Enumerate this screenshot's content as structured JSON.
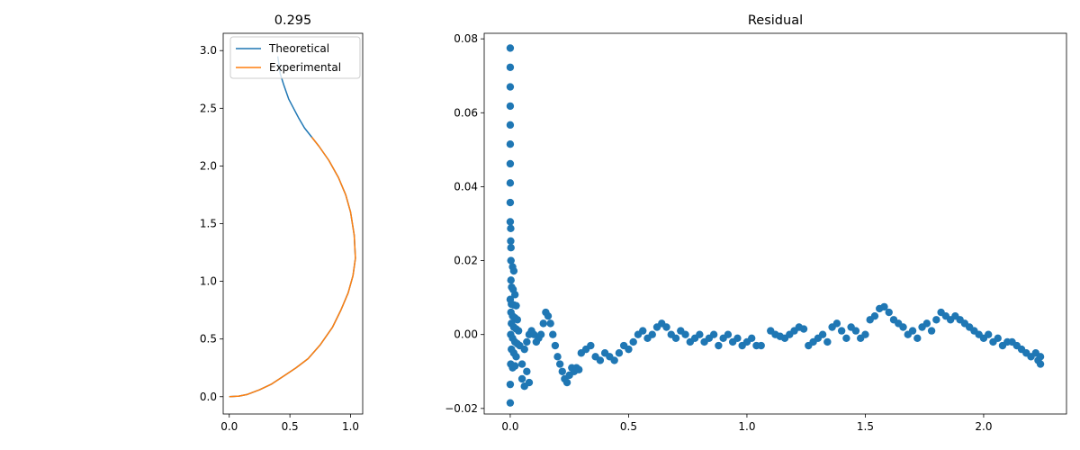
{
  "chart_data": [
    {
      "type": "line",
      "title": "0.295",
      "xlabel": "",
      "ylabel": "",
      "xlim": [
        -0.05,
        1.1
      ],
      "ylim": [
        -0.15,
        3.15
      ],
      "xticks": [
        0.0,
        0.5,
        1.0
      ],
      "xtick_labels": [
        "0.0",
        "0.5",
        "1.0"
      ],
      "yticks": [
        0.0,
        0.5,
        1.0,
        1.5,
        2.0,
        2.5,
        3.0
      ],
      "ytick_labels": [
        "0.0",
        "0.5",
        "1.0",
        "1.5",
        "2.0",
        "2.5",
        "3.0"
      ],
      "legend": {
        "placement": "top-right"
      },
      "series": [
        {
          "name": "Theoretical",
          "color": "#1f77b4",
          "points": [
            [
              0.0,
              0.0
            ],
            [
              0.08,
              0.005
            ],
            [
              0.15,
              0.02
            ],
            [
              0.25,
              0.06
            ],
            [
              0.35,
              0.11
            ],
            [
              0.45,
              0.18
            ],
            [
              0.55,
              0.25
            ],
            [
              0.65,
              0.33
            ],
            [
              0.75,
              0.45
            ],
            [
              0.85,
              0.6
            ],
            [
              0.92,
              0.75
            ],
            [
              0.98,
              0.9
            ],
            [
              1.02,
              1.05
            ],
            [
              1.04,
              1.2
            ],
            [
              1.03,
              1.4
            ],
            [
              1.0,
              1.6
            ],
            [
              0.96,
              1.75
            ],
            [
              0.9,
              1.9
            ],
            [
              0.82,
              2.05
            ],
            [
              0.74,
              2.17
            ],
            [
              0.68,
              2.25
            ],
            [
              0.62,
              2.33
            ],
            [
              0.57,
              2.42
            ],
            [
              0.53,
              2.5
            ],
            [
              0.49,
              2.58
            ],
            [
              0.45,
              2.7
            ],
            [
              0.42,
              2.8
            ],
            [
              0.4,
              2.95
            ]
          ]
        },
        {
          "name": "Experimental",
          "color": "#ff7f0e",
          "points": [
            [
              0.0,
              0.0
            ],
            [
              0.08,
              0.005
            ],
            [
              0.15,
              0.02
            ],
            [
              0.25,
              0.06
            ],
            [
              0.35,
              0.11
            ],
            [
              0.45,
              0.18
            ],
            [
              0.55,
              0.25
            ],
            [
              0.65,
              0.33
            ],
            [
              0.75,
              0.45
            ],
            [
              0.85,
              0.6
            ],
            [
              0.92,
              0.75
            ],
            [
              0.98,
              0.9
            ],
            [
              1.02,
              1.05
            ],
            [
              1.04,
              1.2
            ],
            [
              1.03,
              1.4
            ],
            [
              1.0,
              1.6
            ],
            [
              0.96,
              1.75
            ],
            [
              0.9,
              1.9
            ],
            [
              0.82,
              2.05
            ],
            [
              0.74,
              2.17
            ],
            [
              0.68,
              2.25
            ]
          ]
        }
      ]
    },
    {
      "type": "scatter",
      "title": "Residual",
      "xlabel": "",
      "ylabel": "",
      "xlim": [
        -0.11,
        2.35
      ],
      "ylim": [
        -0.0215,
        0.0815
      ],
      "xticks": [
        0.0,
        0.5,
        1.0,
        1.5,
        2.0
      ],
      "xtick_labels": [
        "0.0",
        "0.5",
        "1.0",
        "1.5",
        "2.0"
      ],
      "yticks": [
        -0.02,
        0.0,
        0.02,
        0.04,
        0.06,
        0.08
      ],
      "ytick_labels": [
        "−0.02",
        "0.00",
        "0.02",
        "0.04",
        "0.06",
        "0.08"
      ],
      "series": [
        {
          "name": "",
          "color": "#1f77b4",
          "points": [
            [
              0.0,
              0.0775
            ],
            [
              0.0,
              0.0723
            ],
            [
              0.0,
              0.067
            ],
            [
              0.0,
              0.0618
            ],
            [
              0.0,
              0.0567
            ],
            [
              0.0,
              0.0515
            ],
            [
              0.0,
              0.0462
            ],
            [
              0.0,
              0.041
            ],
            [
              0.0,
              0.0357
            ],
            [
              0.0,
              0.0305
            ],
            [
              0.002,
              0.0287
            ],
            [
              0.002,
              0.0253
            ],
            [
              0.003,
              0.0235
            ],
            [
              0.003,
              0.02
            ],
            [
              0.01,
              0.0183
            ],
            [
              0.015,
              0.0172
            ],
            [
              0.003,
              0.0147
            ],
            [
              0.006,
              0.0128
            ],
            [
              0.012,
              0.0122
            ],
            [
              0.02,
              0.0108
            ],
            [
              0.0,
              0.0095
            ],
            [
              0.005,
              0.0082
            ],
            [
              0.015,
              0.008
            ],
            [
              0.025,
              0.0078
            ],
            [
              0.003,
              0.006
            ],
            [
              0.01,
              0.005
            ],
            [
              0.02,
              0.0045
            ],
            [
              0.03,
              0.004
            ],
            [
              0.005,
              0.003
            ],
            [
              0.015,
              0.002
            ],
            [
              0.025,
              0.0015
            ],
            [
              0.035,
              0.001
            ],
            [
              0.002,
              0.0
            ],
            [
              0.01,
              -0.001
            ],
            [
              0.02,
              -0.002
            ],
            [
              0.03,
              -0.0025
            ],
            [
              0.04,
              -0.003
            ],
            [
              0.005,
              -0.004
            ],
            [
              0.015,
              -0.005
            ],
            [
              0.025,
              -0.006
            ],
            [
              0.002,
              -0.008
            ],
            [
              0.01,
              -0.009
            ],
            [
              0.02,
              -0.0085
            ],
            [
              0.0,
              -0.0135
            ],
            [
              0.0,
              -0.0185
            ],
            [
              0.05,
              -0.012
            ],
            [
              0.06,
              -0.014
            ],
            [
              0.05,
              -0.008
            ],
            [
              0.07,
              -0.01
            ],
            [
              0.08,
              -0.013
            ],
            [
              0.06,
              -0.004
            ],
            [
              0.07,
              -0.002
            ],
            [
              0.08,
              0.0
            ],
            [
              0.09,
              0.001
            ],
            [
              0.1,
              0.0
            ],
            [
              0.11,
              -0.002
            ],
            [
              0.12,
              -0.001
            ],
            [
              0.13,
              0.0
            ],
            [
              0.14,
              0.003
            ],
            [
              0.15,
              0.006
            ],
            [
              0.16,
              0.005
            ],
            [
              0.17,
              0.003
            ],
            [
              0.18,
              0.0
            ],
            [
              0.19,
              -0.003
            ],
            [
              0.2,
              -0.006
            ],
            [
              0.21,
              -0.008
            ],
            [
              0.22,
              -0.01
            ],
            [
              0.23,
              -0.012
            ],
            [
              0.24,
              -0.013
            ],
            [
              0.25,
              -0.011
            ],
            [
              0.26,
              -0.009
            ],
            [
              0.27,
              -0.01
            ],
            [
              0.28,
              -0.009
            ],
            [
              0.29,
              -0.0095
            ],
            [
              0.3,
              -0.005
            ],
            [
              0.32,
              -0.004
            ],
            [
              0.34,
              -0.003
            ],
            [
              0.36,
              -0.006
            ],
            [
              0.38,
              -0.007
            ],
            [
              0.4,
              -0.005
            ],
            [
              0.42,
              -0.006
            ],
            [
              0.44,
              -0.007
            ],
            [
              0.46,
              -0.005
            ],
            [
              0.48,
              -0.003
            ],
            [
              0.5,
              -0.004
            ],
            [
              0.52,
              -0.002
            ],
            [
              0.54,
              0.0
            ],
            [
              0.56,
              0.001
            ],
            [
              0.58,
              -0.001
            ],
            [
              0.6,
              0.0
            ],
            [
              0.62,
              0.002
            ],
            [
              0.64,
              0.003
            ],
            [
              0.66,
              0.002
            ],
            [
              0.68,
              0.0
            ],
            [
              0.7,
              -0.001
            ],
            [
              0.72,
              0.001
            ],
            [
              0.74,
              0.0
            ],
            [
              0.76,
              -0.002
            ],
            [
              0.78,
              -0.001
            ],
            [
              0.8,
              0.0
            ],
            [
              0.82,
              -0.002
            ],
            [
              0.84,
              -0.001
            ],
            [
              0.86,
              0.0
            ],
            [
              0.88,
              -0.003
            ],
            [
              0.9,
              -0.001
            ],
            [
              0.92,
              0.0
            ],
            [
              0.94,
              -0.002
            ],
            [
              0.96,
              -0.001
            ],
            [
              0.98,
              -0.003
            ],
            [
              1.0,
              -0.002
            ],
            [
              1.02,
              -0.001
            ],
            [
              1.04,
              -0.003
            ],
            [
              1.06,
              -0.003
            ],
            [
              1.1,
              0.001
            ],
            [
              1.12,
              0.0
            ],
            [
              1.14,
              -0.0005
            ],
            [
              1.16,
              -0.001
            ],
            [
              1.18,
              0.0
            ],
            [
              1.2,
              0.001
            ],
            [
              1.22,
              0.002
            ],
            [
              1.24,
              0.0015
            ],
            [
              1.26,
              -0.003
            ],
            [
              1.28,
              -0.002
            ],
            [
              1.3,
              -0.001
            ],
            [
              1.32,
              0.0
            ],
            [
              1.34,
              -0.002
            ],
            [
              1.36,
              0.002
            ],
            [
              1.38,
              0.003
            ],
            [
              1.4,
              0.001
            ],
            [
              1.42,
              -0.001
            ],
            [
              1.44,
              0.002
            ],
            [
              1.46,
              0.001
            ],
            [
              1.48,
              -0.001
            ],
            [
              1.5,
              0.0
            ],
            [
              1.52,
              0.004
            ],
            [
              1.54,
              0.005
            ],
            [
              1.56,
              0.007
            ],
            [
              1.58,
              0.0075
            ],
            [
              1.6,
              0.006
            ],
            [
              1.62,
              0.004
            ],
            [
              1.64,
              0.003
            ],
            [
              1.66,
              0.002
            ],
            [
              1.68,
              0.0
            ],
            [
              1.7,
              0.001
            ],
            [
              1.72,
              -0.001
            ],
            [
              1.74,
              0.002
            ],
            [
              1.76,
              0.003
            ],
            [
              1.78,
              0.001
            ],
            [
              1.8,
              0.004
            ],
            [
              1.82,
              0.006
            ],
            [
              1.84,
              0.005
            ],
            [
              1.86,
              0.004
            ],
            [
              1.88,
              0.005
            ],
            [
              1.9,
              0.004
            ],
            [
              1.92,
              0.003
            ],
            [
              1.94,
              0.002
            ],
            [
              1.96,
              0.001
            ],
            [
              1.98,
              0.0
            ],
            [
              2.0,
              -0.001
            ],
            [
              2.02,
              0.0
            ],
            [
              2.04,
              -0.002
            ],
            [
              2.06,
              -0.001
            ],
            [
              2.08,
              -0.003
            ],
            [
              2.1,
              -0.002
            ],
            [
              2.12,
              -0.002
            ],
            [
              2.14,
              -0.003
            ],
            [
              2.16,
              -0.004
            ],
            [
              2.18,
              -0.005
            ],
            [
              2.2,
              -0.006
            ],
            [
              2.22,
              -0.005
            ],
            [
              2.23,
              -0.007
            ],
            [
              2.24,
              -0.008
            ],
            [
              2.24,
              -0.006
            ]
          ]
        }
      ]
    }
  ]
}
